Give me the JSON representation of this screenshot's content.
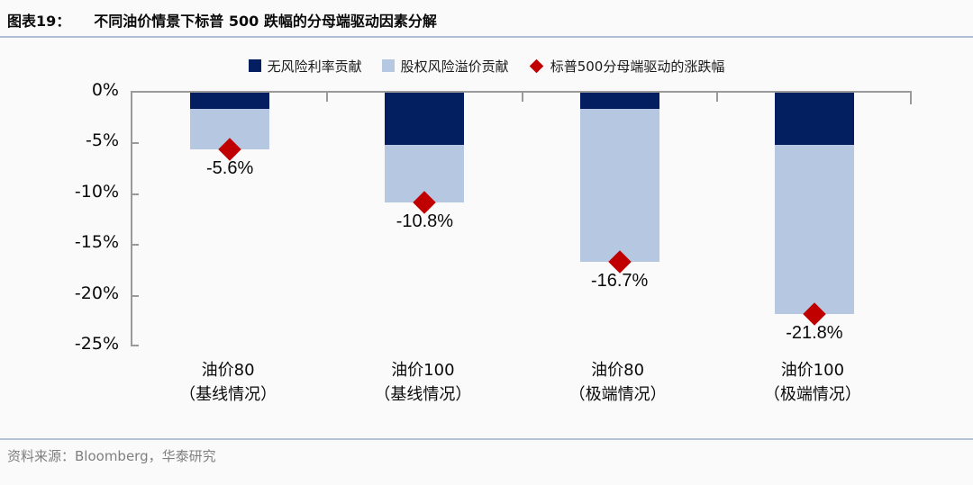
{
  "header": {
    "exhibit_label": "图表19：",
    "title": "不同油价情景下标普 500 跌幅的分母端驱动因素分解"
  },
  "chart_data": {
    "type": "bar",
    "subtype": "stacked-column-negative",
    "title": "不同油价情景下标普 500 跌幅的分母端驱动因素分解",
    "categories": [
      {
        "line1": "油价80",
        "line2": "（基线情况）"
      },
      {
        "line1": "油价100",
        "line2": "（基线情况）"
      },
      {
        "line1": "油价80",
        "line2": "（极端情况）"
      },
      {
        "line1": "油价100",
        "line2": "（极端情况）"
      }
    ],
    "series": [
      {
        "name": "无风险利率贡献",
        "color": "#041f5f",
        "values": [
          -1.6,
          -5.1,
          -1.6,
          -5.1
        ]
      },
      {
        "name": "股权风险溢价贡献",
        "color": "#b5c7e1",
        "values": [
          -4.0,
          -5.7,
          -15.1,
          -16.7
        ]
      }
    ],
    "marker_series": {
      "name": "标普500分母端驱动的涨跌幅",
      "color": "#c00000",
      "values": [
        -5.6,
        -10.8,
        -16.7,
        -21.8
      ],
      "labels": [
        "-5.6%",
        "-10.8%",
        "-16.7%",
        "-21.8%"
      ]
    },
    "yticks": [
      "0%",
      "-5%",
      "-10%",
      "-15%",
      "-20%",
      "-25%"
    ],
    "ylim": [
      -25,
      0
    ],
    "grid": false,
    "legend_position": "top",
    "axis_color": "#9a9a9a"
  },
  "footer": {
    "source": "资料来源：Bloomberg，华泰研究"
  }
}
